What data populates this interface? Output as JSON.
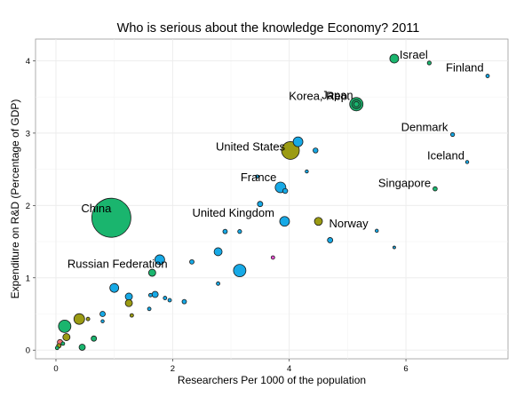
{
  "chart_data": {
    "type": "scatter",
    "title": "Who is serious about the knowledge Economy?   2011",
    "xlabel": "Researchers Per 1000 of the population",
    "ylabel": "Expenditure on R&D (Percentage of GDP)",
    "xlim": [
      -0.35,
      7.75
    ],
    "ylim": [
      -0.12,
      4.3
    ],
    "x_ticks": [
      0,
      2,
      4,
      6
    ],
    "x_tick_labels": [
      "0",
      "2",
      "4",
      "6"
    ],
    "y_ticks": [
      0,
      1,
      2,
      3,
      4
    ],
    "y_tick_labels": [
      "0",
      "1",
      "2",
      "3",
      "4"
    ],
    "grid": true,
    "legend": "none",
    "colors": {
      "teal": "#16a9e6",
      "green": "#1ab56e",
      "olive": "#9b9b13",
      "red": "#f06f6f",
      "magenta": "#e44fcf"
    },
    "points": [
      {
        "x": 0.95,
        "y": 1.83,
        "size": 22,
        "color": "#1ab56e",
        "label": "China"
      },
      {
        "x": 5.8,
        "y": 4.03,
        "size": 5,
        "color": "#1ab56e",
        "label": "Israel"
      },
      {
        "x": 5.15,
        "y": 3.4,
        "size": 7.5,
        "color": "#1ab56e",
        "label": "Korea, Rep."
      },
      {
        "x": 5.15,
        "y": 3.4,
        "size": 3,
        "color": "#1ab56e",
        "label": ""
      },
      {
        "x": 6.4,
        "y": 3.97,
        "size": 2.2,
        "color": "#1ab56e",
        "label": ""
      },
      {
        "x": 7.4,
        "y": 3.79,
        "size": 2,
        "color": "#16a9e6",
        "label": "Finland"
      },
      {
        "x": 5.15,
        "y": 3.4,
        "size": 5,
        "color": "#1ab56e",
        "label": "Japan"
      },
      {
        "x": 6.8,
        "y": 2.98,
        "size": 2.2,
        "color": "#16a9e6",
        "label": "Denmark"
      },
      {
        "x": 7.05,
        "y": 2.6,
        "size": 1.8,
        "color": "#16a9e6",
        "label": "Iceland"
      },
      {
        "x": 6.5,
        "y": 2.23,
        "size": 2.4,
        "color": "#1ab56e",
        "label": "Singapore"
      },
      {
        "x": 4.15,
        "y": 2.88,
        "size": 5.5,
        "color": "#16a9e6",
        "label": ""
      },
      {
        "x": 4.02,
        "y": 2.76,
        "size": 10,
        "color": "#9b9b13",
        "label": "United States"
      },
      {
        "x": 4.45,
        "y": 2.76,
        "size": 2.8,
        "color": "#16a9e6",
        "label": ""
      },
      {
        "x": 4.3,
        "y": 2.47,
        "size": 1.8,
        "color": "#16a9e6",
        "label": ""
      },
      {
        "x": 3.85,
        "y": 2.25,
        "size": 6,
        "color": "#16a9e6",
        "label": "France"
      },
      {
        "x": 3.93,
        "y": 2.2,
        "size": 2.8,
        "color": "#16a9e6",
        "label": ""
      },
      {
        "x": 3.45,
        "y": 2.4,
        "size": 1.8,
        "color": "#16a9e6",
        "label": ""
      },
      {
        "x": 3.92,
        "y": 1.78,
        "size": 5.5,
        "color": "#16a9e6",
        "label": "United Kingdom"
      },
      {
        "x": 3.5,
        "y": 2.02,
        "size": 3,
        "color": "#16a9e6",
        "label": ""
      },
      {
        "x": 4.5,
        "y": 1.78,
        "size": 4.5,
        "color": "#9b9b13",
        "label": "Norway"
      },
      {
        "x": 5.5,
        "y": 1.65,
        "size": 1.8,
        "color": "#16a9e6",
        "label": ""
      },
      {
        "x": 4.7,
        "y": 1.52,
        "size": 3,
        "color": "#16a9e6",
        "label": ""
      },
      {
        "x": 5.8,
        "y": 1.42,
        "size": 1.5,
        "color": "#16a9e6",
        "label": ""
      },
      {
        "x": 3.15,
        "y": 1.64,
        "size": 2.2,
        "color": "#16a9e6",
        "label": ""
      },
      {
        "x": 2.9,
        "y": 1.64,
        "size": 2.5,
        "color": "#16a9e6",
        "label": ""
      },
      {
        "x": 1.78,
        "y": 1.25,
        "size": 5.5,
        "color": "#16a9e6",
        "label": "Russian Federation"
      },
      {
        "x": 2.33,
        "y": 1.22,
        "size": 2.5,
        "color": "#16a9e6",
        "label": ""
      },
      {
        "x": 2.78,
        "y": 1.36,
        "size": 4.5,
        "color": "#16a9e6",
        "label": ""
      },
      {
        "x": 3.15,
        "y": 1.1,
        "size": 7,
        "color": "#16a9e6",
        "label": ""
      },
      {
        "x": 3.72,
        "y": 1.28,
        "size": 2,
        "color": "#e44fcf",
        "label": ""
      },
      {
        "x": 1.65,
        "y": 1.07,
        "size": 4,
        "color": "#1ab56e",
        "label": ""
      },
      {
        "x": 2.78,
        "y": 0.92,
        "size": 2,
        "color": "#16a9e6",
        "label": ""
      },
      {
        "x": 1.0,
        "y": 0.86,
        "size": 5,
        "color": "#16a9e6",
        "label": ""
      },
      {
        "x": 1.25,
        "y": 0.74,
        "size": 4,
        "color": "#16a9e6",
        "label": ""
      },
      {
        "x": 1.7,
        "y": 0.77,
        "size": 3.5,
        "color": "#16a9e6",
        "label": ""
      },
      {
        "x": 1.62,
        "y": 0.76,
        "size": 2,
        "color": "#16a9e6",
        "label": ""
      },
      {
        "x": 1.87,
        "y": 0.72,
        "size": 2,
        "color": "#16a9e6",
        "label": ""
      },
      {
        "x": 1.95,
        "y": 0.69,
        "size": 2,
        "color": "#16a9e6",
        "label": ""
      },
      {
        "x": 2.2,
        "y": 0.67,
        "size": 2.5,
        "color": "#16a9e6",
        "label": ""
      },
      {
        "x": 1.25,
        "y": 0.65,
        "size": 4,
        "color": "#9b9b13",
        "label": ""
      },
      {
        "x": 1.6,
        "y": 0.57,
        "size": 2,
        "color": "#16a9e6",
        "label": ""
      },
      {
        "x": 0.8,
        "y": 0.5,
        "size": 3,
        "color": "#16a9e6",
        "label": ""
      },
      {
        "x": 1.3,
        "y": 0.48,
        "size": 2,
        "color": "#9b9b13",
        "label": ""
      },
      {
        "x": 0.4,
        "y": 0.43,
        "size": 6,
        "color": "#9b9b13",
        "label": ""
      },
      {
        "x": 0.55,
        "y": 0.43,
        "size": 2,
        "color": "#9b9b13",
        "label": ""
      },
      {
        "x": 0.8,
        "y": 0.4,
        "size": 1.8,
        "color": "#16a9e6",
        "label": ""
      },
      {
        "x": 0.15,
        "y": 0.33,
        "size": 7,
        "color": "#1ab56e",
        "label": ""
      },
      {
        "x": 0.18,
        "y": 0.18,
        "size": 4,
        "color": "#9b9b13",
        "label": ""
      },
      {
        "x": 0.65,
        "y": 0.16,
        "size": 3,
        "color": "#1ab56e",
        "label": ""
      },
      {
        "x": 0.07,
        "y": 0.11,
        "size": 3,
        "color": "#f06f6f",
        "label": ""
      },
      {
        "x": 0.12,
        "y": 0.09,
        "size": 2,
        "color": "#1ab56e",
        "label": ""
      },
      {
        "x": 0.05,
        "y": 0.06,
        "size": 2.5,
        "color": "#9b9b13",
        "label": ""
      },
      {
        "x": 0.02,
        "y": 0.03,
        "size": 2,
        "color": "#1ab56e",
        "label": ""
      },
      {
        "x": 0.45,
        "y": 0.04,
        "size": 3.5,
        "color": "#1ab56e",
        "label": ""
      }
    ]
  }
}
